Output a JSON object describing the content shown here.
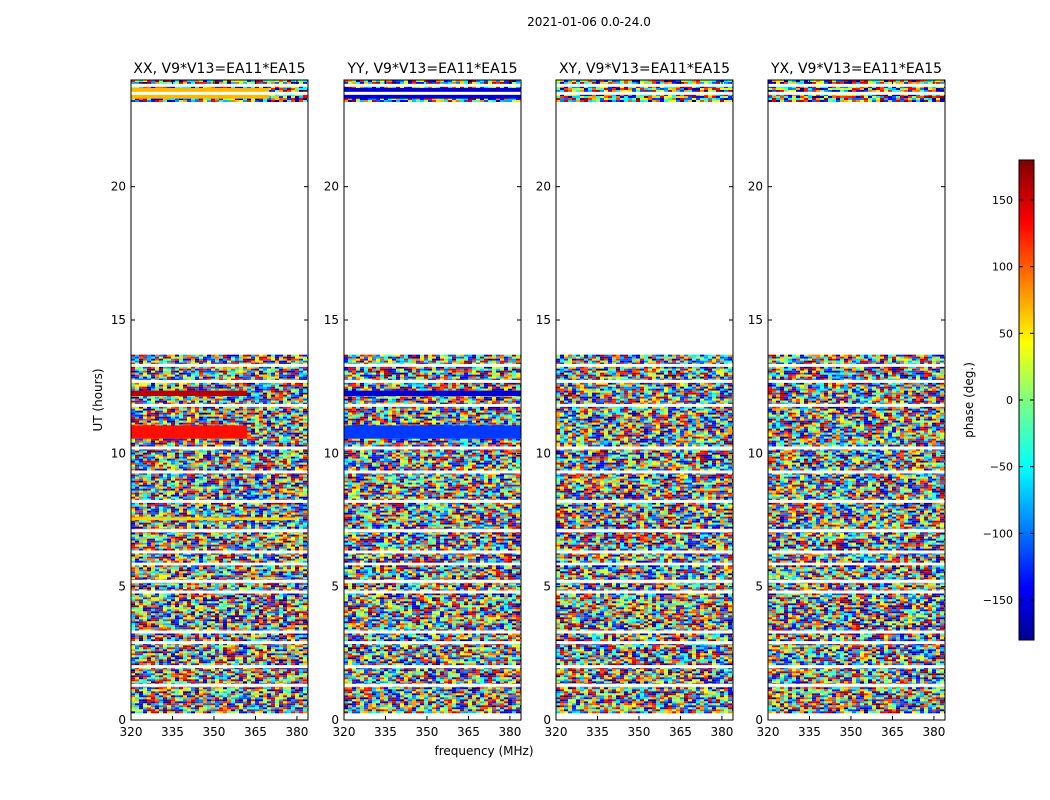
{
  "chart_data": {
    "type": "heatmap",
    "suptitle": "2021-01-06 0.0-24.0",
    "xlabel": "frequency (MHz)",
    "ylabel": "UT (hours)",
    "xlim": [
      320,
      384
    ],
    "ylim": [
      0,
      24
    ],
    "x_ticks": [
      320,
      335,
      350,
      365,
      380
    ],
    "y_ticks": [
      0,
      5,
      10,
      15,
      20
    ],
    "colorbar": {
      "label": "phase (deg.)",
      "range": [
        -180,
        180
      ],
      "ticks": [
        150,
        100,
        50,
        0,
        -50,
        -100,
        -150
      ],
      "tick_labels": [
        "150",
        "100",
        "50",
        "0",
        "−50",
        "−100",
        "−150"
      ],
      "colormap": "jet"
    },
    "data_bands_hours": [
      [
        0.3,
        5.8
      ],
      [
        5.9,
        13.7
      ],
      [
        23.2,
        24.0
      ]
    ],
    "blank_rows_hours": [
      1.3,
      2.0,
      2.9,
      3.3,
      4.8,
      5.2,
      6.3,
      7.1,
      8.2,
      9.3,
      10.2,
      11.8,
      12.7,
      13.3,
      23.5,
      23.8
    ],
    "panels": [
      {
        "title": "XX, V9*V13=EA11*EA15",
        "features": [
          {
            "hours": [
              10.55,
              11.05
            ],
            "phase": 130,
            "f_to": 362
          },
          {
            "hours": [
              12.15,
              12.35
            ],
            "phase": 160,
            "f_to": 362
          },
          {
            "hours": [
              7.5,
              7.6
            ],
            "phase": 60,
            "f_to": 380
          },
          {
            "hours": [
              5.15,
              5.25
            ],
            "phase": 150,
            "f_to": 360
          },
          {
            "hours": [
              23.3,
              23.7
            ],
            "phase": 70,
            "f_to": 370
          }
        ]
      },
      {
        "title": "YY, V9*V13=EA11*EA15",
        "features": [
          {
            "hours": [
              10.55,
              11.05
            ],
            "phase": -115,
            "f_to": 384
          },
          {
            "hours": [
              12.15,
              12.35
            ],
            "phase": -150,
            "f_to": 384
          },
          {
            "hours": [
              23.3,
              23.7
            ],
            "phase": -150,
            "f_to": 384
          }
        ]
      },
      {
        "title": "XY, V9*V13=EA11*EA15",
        "features": []
      },
      {
        "title": "YX, V9*V13=EA11*EA15",
        "features": []
      }
    ]
  }
}
